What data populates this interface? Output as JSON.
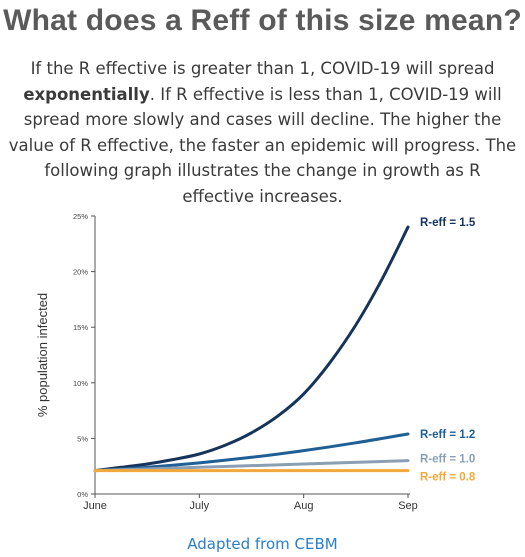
{
  "header": {
    "title": "What does a Reff of this size mean?"
  },
  "intro": {
    "part1": "If the R effective is greater than 1, COVID-19 will spread ",
    "bold": "exponentially",
    "part2": ". If R effective is less than 1, COVID-19 will spread more slowly and cases will decline. The higher the value of R effective, the faster an epidemic will progress. The following graph illustrates the change in growth as R effective increases."
  },
  "chart_data": {
    "type": "line",
    "title": "",
    "xlabel": "",
    "ylabel": "% population infected",
    "x_ticks": [
      "June",
      "July",
      "Aug",
      "Sep"
    ],
    "x_range": [
      0,
      3
    ],
    "y_ticks": [
      "0%",
      "5%",
      "10%",
      "15%",
      "20%",
      "25%"
    ],
    "ylim": [
      0,
      25
    ],
    "grid": false,
    "legend": "inline labels at right end of each line",
    "series": [
      {
        "name": "R-eff = 1.5",
        "color": "#16345a",
        "x": [
          0,
          0.25,
          0.5,
          0.75,
          1,
          1.25,
          1.5,
          1.75,
          2,
          2.25,
          2.5,
          2.75,
          3
        ],
        "y": [
          2.1,
          2.4,
          2.7,
          3.1,
          3.6,
          4.4,
          5.5,
          7.0,
          9.0,
          11.8,
          15.2,
          19.3,
          24.0
        ]
      },
      {
        "name": "R-eff = 1.2",
        "color": "#1f5f96",
        "x": [
          0,
          0.5,
          1,
          1.5,
          2,
          2.5,
          3
        ],
        "y": [
          2.1,
          2.4,
          2.8,
          3.3,
          3.9,
          4.6,
          5.4
        ]
      },
      {
        "name": "R-eff = 1.0",
        "color": "#8a9fb3",
        "x": [
          0,
          1,
          2,
          3
        ],
        "y": [
          2.1,
          2.4,
          2.7,
          3.0
        ]
      },
      {
        "name": "R-eff = 0.8",
        "color": "#f0a93a",
        "x": [
          0,
          1,
          2,
          3
        ],
        "y": [
          2.1,
          2.1,
          2.1,
          2.1
        ]
      }
    ]
  },
  "caption": {
    "text": "Adapted from CEBM"
  }
}
